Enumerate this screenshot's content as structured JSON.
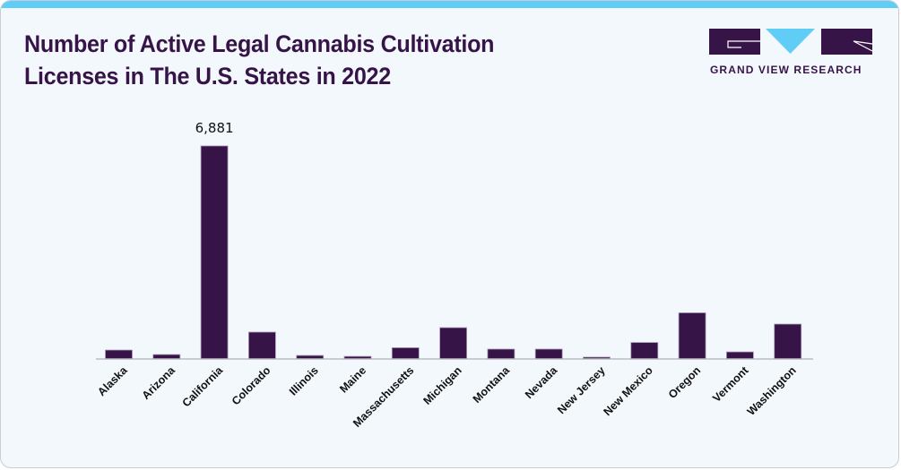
{
  "header": {
    "title_line1": "Number of Active Legal Cannabis Cultivation",
    "title_line2": "Licenses in The U.S. States in 2022"
  },
  "brand": {
    "name": "GRAND VIEW RESEARCH",
    "logo_icon": "gvr-logo-icon",
    "colors": {
      "primary": "#371448",
      "accent": "#5fcdf5"
    }
  },
  "chart_data": {
    "type": "bar",
    "title": "Number of Active Legal Cannabis Cultivation Licenses in The U.S. States in 2022",
    "xlabel": "",
    "ylabel": "",
    "categories": [
      "Alaska",
      "Arizona",
      "California",
      "Colorado",
      "Illinois",
      "Maine",
      "Massachusetts",
      "Michigan",
      "Montana",
      "Nevada",
      "New Jersey",
      "New Mexico",
      "Oregon",
      "Vermont",
      "Washington"
    ],
    "values": [
      275,
      130,
      6881,
      855,
      100,
      70,
      350,
      1000,
      305,
      305,
      45,
      520,
      1480,
      215,
      1115
    ],
    "data_labels": [
      {
        "category": "California",
        "text": "6,881"
      }
    ],
    "ylim": [
      0,
      6881
    ],
    "grid": false,
    "legend": "none",
    "bar_color": "#371448"
  }
}
